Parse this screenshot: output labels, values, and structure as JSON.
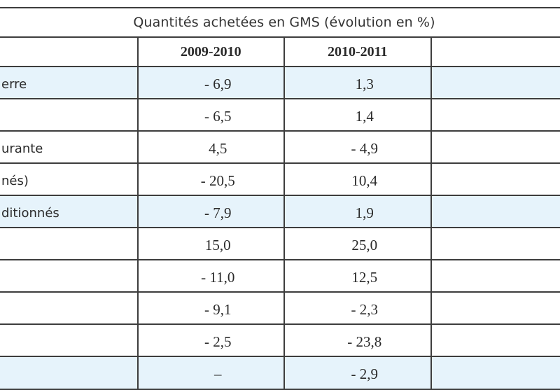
{
  "table": {
    "title": "Quantités achetées en GMS (évolution en %)",
    "columns": [
      "2009-2010",
      "2010-2011"
    ],
    "rows": [
      {
        "label": "erre",
        "v1": "- 6,9",
        "v2": "1,3",
        "highlight": true
      },
      {
        "label": "",
        "v1": "- 6,5",
        "v2": "1,4",
        "highlight": false
      },
      {
        "label": "urante",
        "v1": "4,5",
        "v2": "- 4,9",
        "highlight": false
      },
      {
        "label": "nés)",
        "v1": "- 20,5",
        "v2": "10,4",
        "highlight": false
      },
      {
        "label": "ditionnés",
        "v1": "- 7,9",
        "v2": "1,9",
        "highlight": true
      },
      {
        "label": "",
        "v1": "15,0",
        "v2": "25,0",
        "highlight": false
      },
      {
        "label": "",
        "v1": "- 11,0",
        "v2": "12,5",
        "highlight": false
      },
      {
        "label": "",
        "v1": "- 9,1",
        "v2": "- 2,3",
        "highlight": false
      },
      {
        "label": "",
        "v1": "- 2,5",
        "v2": "- 23,8",
        "highlight": false
      },
      {
        "label": "",
        "v1": "–",
        "v2": "- 2,9",
        "highlight": true
      }
    ],
    "highlight_color": "#e6f3fb"
  }
}
